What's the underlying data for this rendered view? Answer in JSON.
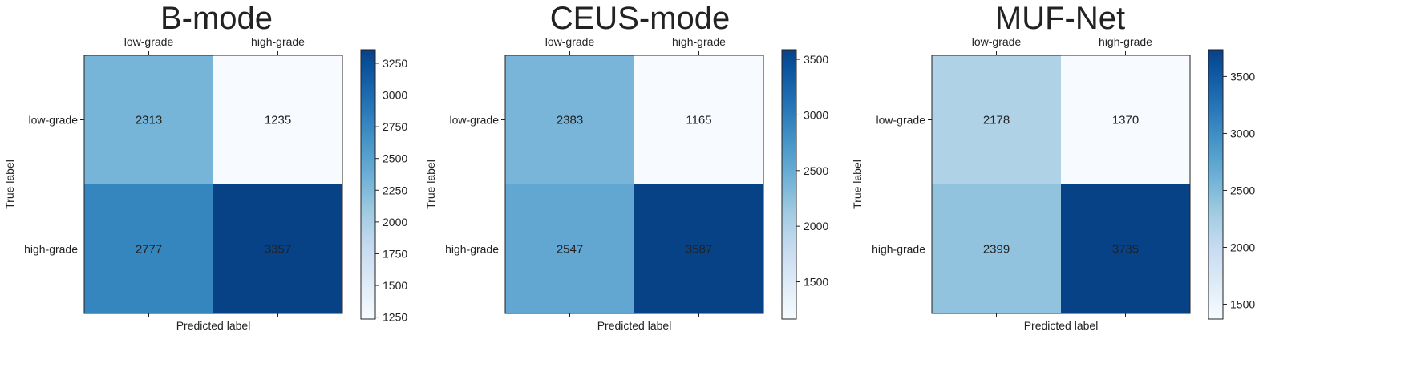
{
  "chart_data": [
    {
      "type": "heatmap",
      "title": "B-mode",
      "xlabel": "Predicted label",
      "ylabel": "True label",
      "x_categories": [
        "low-grade",
        "high-grade"
      ],
      "y_categories": [
        "low-grade",
        "high-grade"
      ],
      "values": [
        [
          2313,
          1235
        ],
        [
          2777,
          3357
        ]
      ],
      "colorbar": {
        "range": [
          1235,
          3357
        ],
        "ticks": [
          1250,
          1500,
          1750,
          2000,
          2250,
          2500,
          2750,
          3000,
          3250
        ]
      },
      "colormap": "Blues"
    },
    {
      "type": "heatmap",
      "title": "CEUS-mode",
      "xlabel": "Predicted label",
      "ylabel": "True label",
      "x_categories": [
        "low-grade",
        "high-grade"
      ],
      "y_categories": [
        "low-grade",
        "high-grade"
      ],
      "values": [
        [
          2383,
          1165
        ],
        [
          2547,
          3587
        ]
      ],
      "colorbar": {
        "range": [
          1165,
          3587
        ],
        "ticks": [
          1500,
          2000,
          2500,
          3000,
          3500
        ]
      },
      "colormap": "Blues"
    },
    {
      "type": "heatmap",
      "title": "MUF-Net",
      "xlabel": "Predicted label",
      "ylabel": "True label",
      "x_categories": [
        "low-grade",
        "high-grade"
      ],
      "y_categories": [
        "low-grade",
        "high-grade"
      ],
      "values": [
        [
          2178,
          1370
        ],
        [
          2399,
          3735
        ]
      ],
      "colorbar": {
        "range": [
          1370,
          3735
        ],
        "ticks": [
          1500,
          2000,
          2500,
          3000,
          3500
        ]
      },
      "colormap": "Blues"
    }
  ]
}
